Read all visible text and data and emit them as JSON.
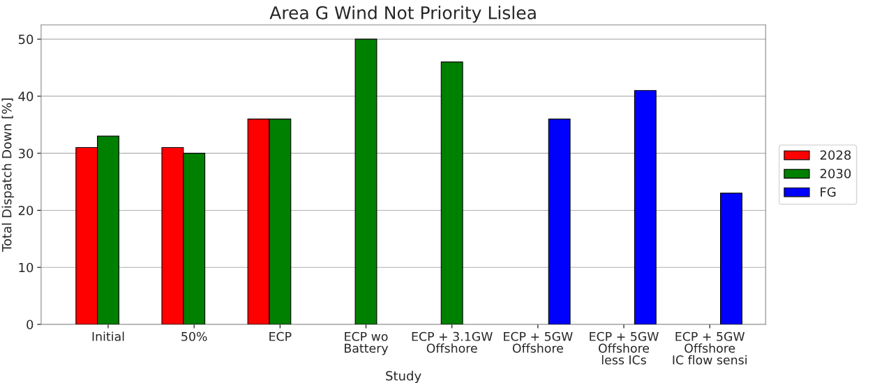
{
  "chart_data": {
    "type": "bar",
    "title": "Area G Wind Not Priority Lislea",
    "xlabel": "Study",
    "ylabel": "Total Dispatch Down [%]",
    "categories": [
      "Initial",
      "50%",
      "ECP",
      "ECP wo\nBattery",
      "ECP + 3.1GW\nOffshore",
      "ECP + 5GW\nOffshore",
      "ECP + 5GW\nOffshore\nless ICs",
      "ECP + 5GW\nOffshore\nIC flow sensi"
    ],
    "series": [
      {
        "name": "2028",
        "color": "#ff0000",
        "values": [
          31,
          31,
          36,
          null,
          null,
          null,
          null,
          null
        ]
      },
      {
        "name": "2030",
        "color": "#008000",
        "values": [
          33,
          30,
          36,
          50,
          46,
          null,
          null,
          null
        ]
      },
      {
        "name": "FG",
        "color": "#0000ff",
        "values": [
          null,
          null,
          null,
          null,
          null,
          36,
          41,
          23
        ]
      }
    ],
    "ylim": [
      0,
      52.5
    ],
    "yticks": [
      0,
      10,
      20,
      30,
      40,
      50
    ],
    "grid": "y",
    "legend": "right"
  }
}
